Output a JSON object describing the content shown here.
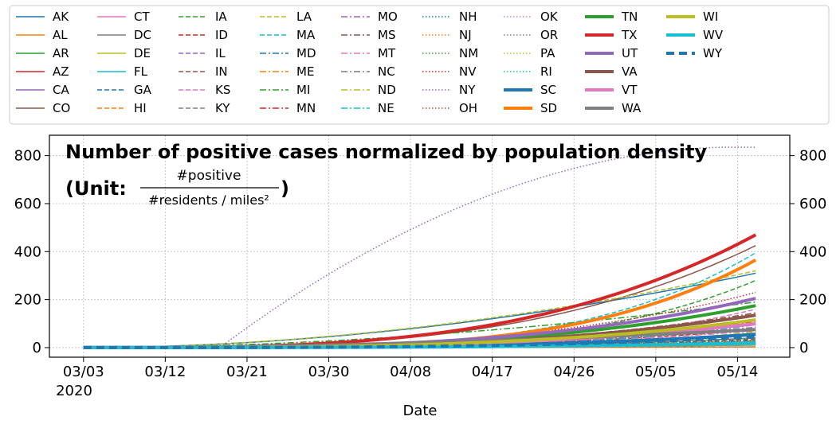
{
  "chart_data": {
    "type": "line",
    "title_line1": "Number of positive cases normalized by population density",
    "title_unit_prefix": "(Unit: ",
    "title_unit_numerator": "#positive",
    "title_unit_denominator": "#residents / miles²",
    "title_unit_suffix": ")",
    "xlabel": "Date",
    "x_start": "2020-03-01",
    "x_end": "2020-05-18",
    "x_ticks": [
      "03/03",
      "03/12",
      "03/21",
      "03/30",
      "04/08",
      "04/17",
      "04/26",
      "05/05",
      "05/14"
    ],
    "x_tick_dates": [
      "2020-03-03",
      "2020-03-12",
      "2020-03-21",
      "2020-03-30",
      "2020-04-08",
      "2020-04-17",
      "2020-04-26",
      "2020-05-05",
      "2020-05-14"
    ],
    "x_year_label": "2020",
    "ylim": [
      -40,
      885
    ],
    "y_ticks": [
      0,
      200,
      400,
      600,
      800
    ],
    "grid": true,
    "legend_placement": "top",
    "series": [
      {
        "name": "AK",
        "color": "#1f77b4",
        "style": "solid",
        "width": 1.5,
        "final": 310,
        "shape": "early"
      },
      {
        "name": "AL",
        "color": "#ff7f0e",
        "style": "solid",
        "width": 1.5,
        "final": 20,
        "shape": "normal"
      },
      {
        "name": "AR",
        "color": "#2ca02c",
        "style": "solid",
        "width": 1.5,
        "final": 40,
        "shape": "normal"
      },
      {
        "name": "AZ",
        "color": "#d62728",
        "style": "solid",
        "width": 1.5,
        "final": 15,
        "shape": "normal"
      },
      {
        "name": "CA",
        "color": "#9467bd",
        "style": "solid",
        "width": 1.5,
        "final": 15,
        "shape": "normal"
      },
      {
        "name": "CO",
        "color": "#8c564b",
        "style": "solid",
        "width": 1.5,
        "final": 425,
        "shape": "normal"
      },
      {
        "name": "CT",
        "color": "#e377c2",
        "style": "solid",
        "width": 1.5,
        "final": 25,
        "shape": "normal"
      },
      {
        "name": "DC",
        "color": "#7f7f7f",
        "style": "solid",
        "width": 1.5,
        "final": 3,
        "shape": "normal"
      },
      {
        "name": "DE",
        "color": "#bcbd22",
        "style": "solid",
        "width": 1.5,
        "final": 12,
        "shape": "normal"
      },
      {
        "name": "FL",
        "color": "#17becf",
        "style": "solid",
        "width": 1.5,
        "final": 10,
        "shape": "normal"
      },
      {
        "name": "GA",
        "color": "#1f77b4",
        "style": "dashed",
        "width": 1.5,
        "final": 30,
        "shape": "normal"
      },
      {
        "name": "HI",
        "color": "#ff7f0e",
        "style": "dashed",
        "width": 1.5,
        "final": 3,
        "shape": "normal"
      },
      {
        "name": "IA",
        "color": "#2ca02c",
        "style": "dashed",
        "width": 1.5,
        "final": 280,
        "shape": "late"
      },
      {
        "name": "ID",
        "color": "#d62728",
        "style": "dashed",
        "width": 1.5,
        "final": 75,
        "shape": "normal"
      },
      {
        "name": "IL",
        "color": "#9467bd",
        "style": "dashed",
        "width": 1.5,
        "final": 60,
        "shape": "normal"
      },
      {
        "name": "IN",
        "color": "#8c564b",
        "style": "dashed",
        "width": 1.5,
        "final": 35,
        "shape": "normal"
      },
      {
        "name": "KS",
        "color": "#e377c2",
        "style": "dashed",
        "width": 1.5,
        "final": 160,
        "shape": "late"
      },
      {
        "name": "KY",
        "color": "#7f7f7f",
        "style": "dashed",
        "width": 1.5,
        "final": 40,
        "shape": "normal"
      },
      {
        "name": "LA",
        "color": "#bcbd22",
        "style": "dashed",
        "width": 1.5,
        "final": 320,
        "shape": "early"
      },
      {
        "name": "MA",
        "color": "#17becf",
        "style": "dashed",
        "width": 1.5,
        "final": 395,
        "shape": "late"
      },
      {
        "name": "MD",
        "color": "#1f77b4",
        "style": "dashdot",
        "width": 1.5,
        "final": 50,
        "shape": "normal"
      },
      {
        "name": "ME",
        "color": "#ff7f0e",
        "style": "dashdot",
        "width": 1.5,
        "final": 30,
        "shape": "normal"
      },
      {
        "name": "MI",
        "color": "#2ca02c",
        "style": "dashdot",
        "width": 1.5,
        "final": 190,
        "shape": "early"
      },
      {
        "name": "MN",
        "color": "#d62728",
        "style": "dashdot",
        "width": 1.5,
        "final": 110,
        "shape": "late"
      },
      {
        "name": "MO",
        "color": "#9467bd",
        "style": "dashdot",
        "width": 1.5,
        "final": 85,
        "shape": "normal"
      },
      {
        "name": "MS",
        "color": "#8c564b",
        "style": "dashdot",
        "width": 1.5,
        "final": 145,
        "shape": "normal"
      },
      {
        "name": "MT",
        "color": "#e377c2",
        "style": "dashdot",
        "width": 1.5,
        "final": 70,
        "shape": "normal"
      },
      {
        "name": "NC",
        "color": "#7f7f7f",
        "style": "dashdot",
        "width": 1.5,
        "final": 60,
        "shape": "normal"
      },
      {
        "name": "ND",
        "color": "#bcbd22",
        "style": "dashdot",
        "width": 1.5,
        "final": 65,
        "shape": "late"
      },
      {
        "name": "NE",
        "color": "#17becf",
        "style": "dashdot",
        "width": 1.5,
        "final": 95,
        "shape": "late"
      },
      {
        "name": "NH",
        "color": "#1f77b4",
        "style": "dotted",
        "width": 1.5,
        "final": 30,
        "shape": "normal"
      },
      {
        "name": "NJ",
        "color": "#ff7f0e",
        "style": "dotted",
        "width": 1.5,
        "final": 10,
        "shape": "normal"
      },
      {
        "name": "NM",
        "color": "#2ca02c",
        "style": "dotted",
        "width": 1.5,
        "final": 25,
        "shape": "normal"
      },
      {
        "name": "NV",
        "color": "#d62728",
        "style": "dotted",
        "width": 1.5,
        "final": 230,
        "shape": "normal"
      },
      {
        "name": "NY",
        "color": "#9467bd",
        "style": "dotted",
        "width": 1.5,
        "final": 835,
        "shape": "ny"
      },
      {
        "name": "OH",
        "color": "#8c564b",
        "style": "dotted",
        "width": 1.5,
        "final": 95,
        "shape": "normal"
      },
      {
        "name": "OK",
        "color": "#e377c2",
        "style": "dotted",
        "width": 1.5,
        "final": 95,
        "shape": "normal"
      },
      {
        "name": "OR",
        "color": "#7f7f7f",
        "style": "dotted",
        "width": 1.5,
        "final": 80,
        "shape": "normal"
      },
      {
        "name": "PA",
        "color": "#bcbd22",
        "style": "dotted",
        "width": 1.5,
        "final": 120,
        "shape": "normal"
      },
      {
        "name": "RI",
        "color": "#17becf",
        "style": "dotted",
        "width": 1.5,
        "final": 15,
        "shape": "normal"
      },
      {
        "name": "SC",
        "color": "#1f77b4",
        "style": "solid",
        "width": 4,
        "final": 55,
        "shape": "normal"
      },
      {
        "name": "SD",
        "color": "#ff7f0e",
        "style": "solid",
        "width": 4,
        "final": 365,
        "shape": "late"
      },
      {
        "name": "TN",
        "color": "#2ca02c",
        "style": "solid",
        "width": 4,
        "final": 175,
        "shape": "normal"
      },
      {
        "name": "TX",
        "color": "#d62728",
        "style": "solid",
        "width": 4,
        "final": 470,
        "shape": "normal"
      },
      {
        "name": "UT",
        "color": "#9467bd",
        "style": "solid",
        "width": 4,
        "final": 205,
        "shape": "normal"
      },
      {
        "name": "VA",
        "color": "#8c564b",
        "style": "solid",
        "width": 4,
        "final": 135,
        "shape": "normal"
      },
      {
        "name": "VT",
        "color": "#e377c2",
        "style": "solid",
        "width": 4,
        "final": 100,
        "shape": "normal"
      },
      {
        "name": "WA",
        "color": "#7f7f7f",
        "style": "solid",
        "width": 4,
        "final": 75,
        "shape": "early"
      },
      {
        "name": "WI",
        "color": "#bcbd22",
        "style": "solid",
        "width": 4,
        "final": 115,
        "shape": "normal"
      },
      {
        "name": "WV",
        "color": "#17becf",
        "style": "solid",
        "width": 4,
        "final": 20,
        "shape": "normal"
      },
      {
        "name": "WY",
        "color": "#1f77b4",
        "style": "dashed",
        "width": 4,
        "final": 45,
        "shape": "normal"
      }
    ]
  }
}
